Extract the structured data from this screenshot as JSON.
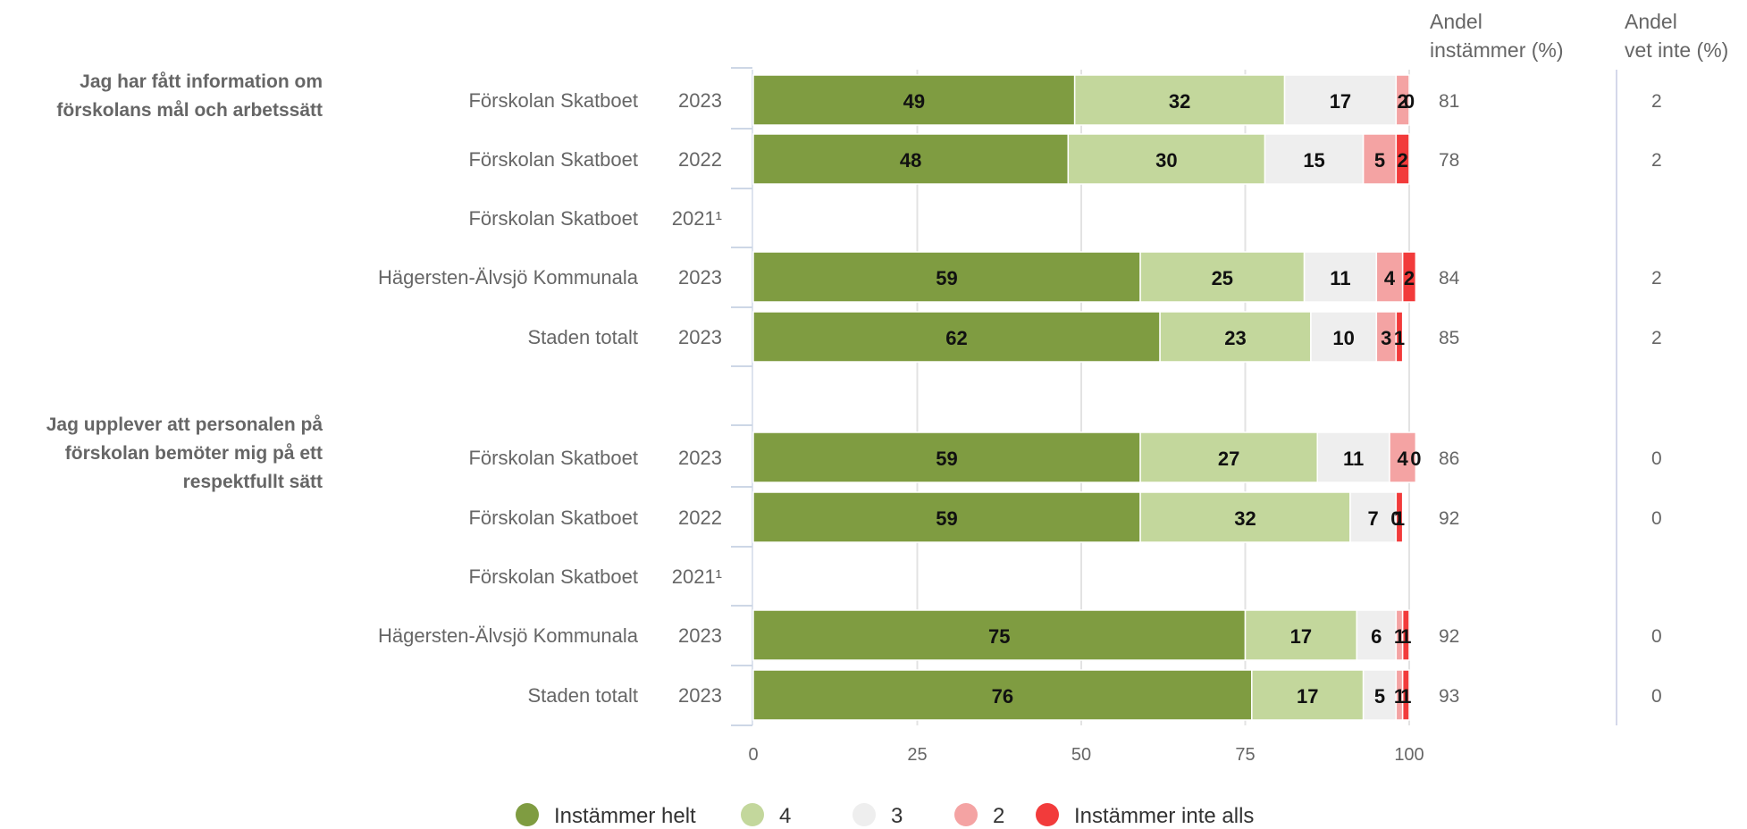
{
  "chart_data": {
    "type": "bar",
    "orientation": "horizontal",
    "stacked": true,
    "xlim": [
      0,
      100
    ],
    "xticks": [
      "0",
      "25",
      "50",
      "75",
      "100"
    ],
    "grid": true,
    "legend_position": "bottom",
    "columns": {
      "agree": [
        "Andel",
        "instämmer (%)"
      ],
      "dont_know": [
        "Andel",
        "vet inte (%)"
      ]
    },
    "series": [
      {
        "name": "Instämmer helt",
        "color": "#7f9c41"
      },
      {
        "name": "4",
        "color": "#c3d79c"
      },
      {
        "name": "3",
        "color": "#eeeeee"
      },
      {
        "name": "2",
        "color": "#f4a3a3"
      },
      {
        "name": "Instämmer inte alls",
        "color": "#f23b3b"
      }
    ],
    "groups": [
      {
        "title": [
          "Jag har fått information om",
          "förskolans mål och arbetssätt"
        ],
        "rows": [
          {
            "unit": "Förskolan Skatboet",
            "year": "2023",
            "values": [
              49,
              32,
              17,
              2,
              0
            ],
            "labels": [
              "49",
              "32",
              "17",
              "2",
              "0"
            ],
            "agree": "81",
            "dont_know": "2"
          },
          {
            "unit": "Förskolan Skatboet",
            "year": "2022",
            "values": [
              48,
              30,
              15,
              5,
              2
            ],
            "labels": [
              "48",
              "30",
              "15",
              "5",
              "2"
            ],
            "agree": "78",
            "dont_know": "2"
          },
          {
            "unit": "Förskolan Skatboet",
            "year": "2021¹",
            "values": null,
            "labels": null,
            "agree": "",
            "dont_know": ""
          },
          {
            "unit": "Hägersten-Älvsjö Kommunala",
            "year": "2023",
            "values": [
              59,
              25,
              11,
              4,
              2
            ],
            "labels": [
              "59",
              "25",
              "11",
              "4",
              "2"
            ],
            "agree": "84",
            "dont_know": "2"
          },
          {
            "unit": "Staden totalt",
            "year": "2023",
            "values": [
              62,
              23,
              10,
              3,
              1
            ],
            "labels": [
              "62",
              "23",
              "10",
              "3",
              "1"
            ],
            "agree": "85",
            "dont_know": "2"
          }
        ]
      },
      {
        "title": [
          "Jag upplever att personalen på",
          "förskolan bemöter mig på ett",
          "respektfullt sätt"
        ],
        "rows": [
          {
            "unit": "Förskolan Skatboet",
            "year": "2023",
            "values": [
              59,
              27,
              11,
              4,
              0
            ],
            "labels": [
              "59",
              "27",
              "11",
              "4",
              "0"
            ],
            "agree": "86",
            "dont_know": "0"
          },
          {
            "unit": "Förskolan Skatboet",
            "year": "2022",
            "values": [
              59,
              32,
              7,
              0,
              1
            ],
            "labels": [
              "59",
              "32",
              "7",
              "0",
              "1"
            ],
            "agree": "92",
            "dont_know": "0"
          },
          {
            "unit": "Förskolan Skatboet",
            "year": "2021¹",
            "values": null,
            "labels": null,
            "agree": "",
            "dont_know": ""
          },
          {
            "unit": "Hägersten-Älvsjö Kommunala",
            "year": "2023",
            "values": [
              75,
              17,
              6,
              1,
              1
            ],
            "labels": [
              "75",
              "17",
              "6",
              "1",
              "1"
            ],
            "agree": "92",
            "dont_know": "0"
          },
          {
            "unit": "Staden totalt",
            "year": "2023",
            "values": [
              76,
              17,
              5,
              1,
              1
            ],
            "labels": [
              "76",
              "17",
              "5",
              "1",
              "1"
            ],
            "agree": "93",
            "dont_know": "0"
          }
        ]
      }
    ]
  }
}
